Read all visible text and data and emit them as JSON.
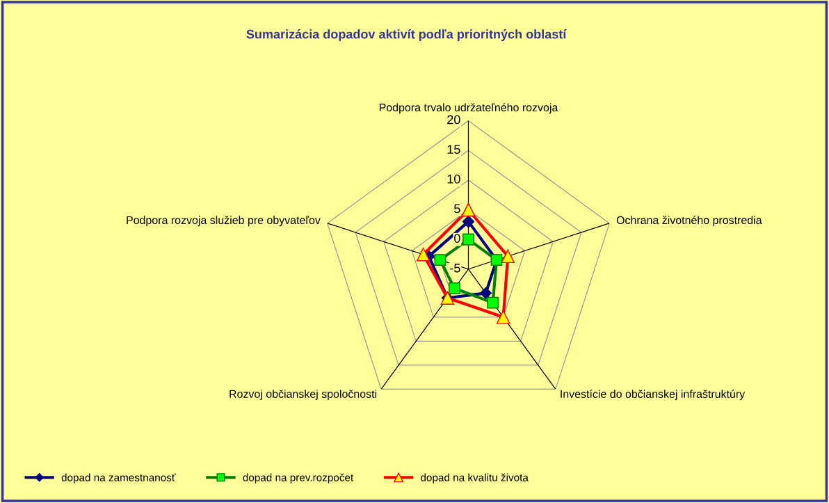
{
  "chart_data": {
    "type": "radar",
    "title": "Sumarizácia dopadov aktivít podľa prioritných oblastí",
    "categories": [
      "Podpora trvalo udržateľného rozvoja",
      "Ochrana životného prostredia",
      "Investície do občianskej infraštruktúry",
      "Rozvoj občianskej spoločnosti",
      "Podpora rozvoja služieb pre obyvateľov"
    ],
    "series": [
      {
        "name": "dopad na zamestnanosť",
        "color": "#000080",
        "marker": "diamond",
        "values": [
          3,
          0,
          0,
          1,
          2
        ]
      },
      {
        "name": "dopad na prev.rozpočet",
        "color": "#008000",
        "marker": "square",
        "values": [
          0,
          0,
          2,
          -1,
          0
        ]
      },
      {
        "name": "dopad na kvalitu života",
        "color": "#ff0000",
        "marker": "triangle",
        "values": [
          5,
          2,
          5,
          1,
          3
        ]
      }
    ],
    "ylim": [
      -5,
      20
    ],
    "yticks": [
      -5,
      0,
      5,
      10,
      15,
      20
    ],
    "grid": true,
    "legend": "bottom"
  }
}
